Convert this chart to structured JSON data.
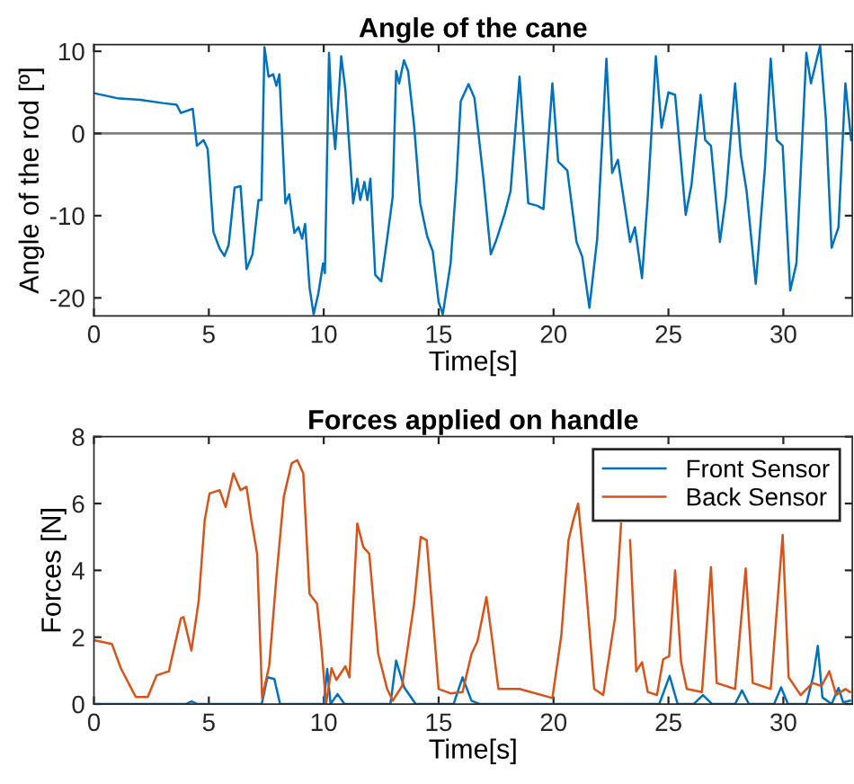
{
  "chart_data": [
    {
      "type": "line",
      "title": "Angle of the cane",
      "xlabel": "Time[s]",
      "ylabel": "Angle of the rod [º]",
      "xlim": [
        0,
        33
      ],
      "ylim": [
        -22.2,
        10.8
      ],
      "xticks": [
        0,
        5,
        10,
        15,
        20,
        25,
        30
      ],
      "yticks": [
        -20,
        -10,
        0,
        10
      ],
      "grid": false,
      "legend": false,
      "ref_lines": [
        {
          "axis": "y",
          "value": 0,
          "color": "#808080"
        }
      ],
      "series": [
        {
          "color": "#0072bd",
          "x": [
            0,
            1,
            2,
            3,
            3.6,
            3.78,
            4.3,
            4.48,
            4.77,
            4.95,
            5.2,
            5.47,
            5.68,
            5.86,
            6.12,
            6.38,
            6.64,
            6.9,
            7.16,
            7.29,
            7.42,
            7.6,
            7.8,
            7.94,
            8.07,
            8.33,
            8.5,
            8.72,
            8.9,
            9.06,
            9.19,
            9.38,
            9.56,
            9.77,
            9.97,
            10.05,
            10.23,
            10.34,
            10.5,
            10.76,
            10.94,
            11.28,
            11.46,
            11.59,
            11.77,
            11.9,
            12.03,
            12.24,
            12.5,
            12.76,
            13.0,
            13.15,
            13.28,
            13.49,
            13.67,
            13.93,
            14.2,
            14.5,
            14.74,
            15.0,
            15.18,
            15.52,
            15.78,
            15.96,
            16.3,
            16.56,
            16.95,
            17.27,
            17.53,
            17.86,
            18.13,
            18.52,
            18.9,
            19.3,
            19.56,
            19.95,
            20.2,
            20.6,
            21.0,
            21.25,
            21.56,
            21.9,
            22.3,
            22.55,
            22.8,
            23.33,
            23.54,
            23.85,
            24.1,
            24.45,
            24.7,
            25.0,
            25.29,
            25.75,
            26.0,
            26.4,
            26.6,
            26.85,
            27.24,
            27.5,
            27.9,
            28.15,
            28.4,
            28.8,
            29.2,
            29.45,
            29.71,
            29.97,
            30.3,
            30.57,
            31.0,
            31.2,
            31.6,
            31.85,
            32.1,
            32.4,
            32.7,
            32.95
          ],
          "values": [
            4.9,
            4.3,
            4.1,
            3.7,
            3.5,
            2.5,
            3.0,
            -1.5,
            -0.8,
            -1.9,
            -12,
            -14,
            -14.9,
            -13.6,
            -6.6,
            -6.4,
            -16.5,
            -14.7,
            -8.1,
            -8.1,
            10.5,
            6.9,
            7.2,
            5.8,
            7.2,
            -8.5,
            -7.4,
            -12.1,
            -11.4,
            -12.8,
            -11,
            -18.7,
            -22,
            -19.4,
            -15.8,
            -17,
            9.8,
            3.2,
            -1.9,
            9.4,
            5.4,
            -8.5,
            -5.5,
            -8.1,
            -5.9,
            -8.1,
            -5.5,
            -17.2,
            -18,
            -12.8,
            -7.7,
            7.6,
            6.1,
            8.9,
            7.6,
            1,
            -8.5,
            -12.5,
            -14.3,
            -20.5,
            -22,
            -15.8,
            -5.5,
            3.9,
            6.0,
            4.3,
            -5.5,
            -14.7,
            -12.8,
            -9.9,
            -7,
            6.9,
            -8.5,
            -8.8,
            -9.2,
            6.1,
            -3.4,
            -4.5,
            -13.2,
            -15,
            -21.2,
            -12.8,
            9.1,
            -4.8,
            -3.2,
            -13.2,
            -11.4,
            -17.6,
            -7.7,
            9.4,
            0.7,
            5.0,
            4.7,
            -9.9,
            -6.3,
            4.7,
            -0.8,
            -1.5,
            -13.2,
            -7.7,
            6.1,
            -2.6,
            -7,
            -18.3,
            -4.1,
            9.1,
            -0.8,
            -1.5,
            -19.1,
            -15.8,
            9.8,
            6.1,
            10.7,
            1.8,
            -13.9,
            -11.4,
            6.1,
            -0.8
          ]
        }
      ]
    },
    {
      "type": "line",
      "title": "Forces applied on handle",
      "xlabel": "Time[s]",
      "ylabel": "Forces [N]",
      "xlim": [
        0,
        33
      ],
      "ylim": [
        0,
        8
      ],
      "xticks": [
        0,
        5,
        10,
        15,
        20,
        25,
        30
      ],
      "yticks": [
        0,
        2,
        4,
        6,
        8
      ],
      "grid": false,
      "legend": "top right",
      "series": [
        {
          "name": "Front Sensor",
          "color": "#0072bd",
          "x": [
            0,
            4.0,
            4.25,
            4.5,
            7.3,
            7.55,
            7.85,
            8.1,
            10.0,
            10.15,
            10.3,
            10.6,
            10.9,
            12.9,
            13.15,
            13.5,
            14.0,
            15.65,
            16.04,
            16.43,
            16.8,
            24.6,
            25.05,
            25.4,
            26.1,
            26.5,
            26.9,
            27.9,
            28.2,
            28.5,
            29.6,
            29.9,
            30.2,
            31.0,
            31.3,
            31.5,
            31.7,
            32.1,
            32.4,
            32.6,
            32.9
          ],
          "values": [
            0,
            0,
            0.08,
            0,
            0,
            0.8,
            0.75,
            0,
            0,
            1.05,
            0,
            0.3,
            0,
            0,
            1.3,
            0.5,
            0,
            0,
            0.8,
            0.1,
            0,
            0,
            0.84,
            0,
            0,
            0.27,
            0,
            0,
            0.41,
            0,
            0,
            0.5,
            0,
            0,
            0.84,
            1.74,
            0.2,
            0,
            0.48,
            0.05,
            0.1
          ]
        },
        {
          "name": "Back Sensor",
          "color": "#d95319",
          "x": [
            0,
            0.78,
            1.17,
            1.82,
            2.34,
            2.73,
            3.26,
            3.78,
            3.9,
            4.24,
            4.56,
            4.82,
            5.03,
            5.47,
            5.73,
            6.07,
            6.38,
            6.64,
            6.85,
            7.1,
            7.32,
            7.63,
            7.94,
            8.26,
            8.6,
            8.85,
            9.11,
            9.38,
            9.71,
            9.9,
            10.1,
            10.34,
            10.55,
            10.94,
            11.12,
            11.46,
            11.72,
            11.98,
            12.37,
            12.76,
            13.0,
            13.41,
            13.93,
            14.22,
            14.48,
            15.0,
            15.52,
            16.04,
            16.43,
            16.69,
            17.08,
            17.34,
            17.6,
            18.52,
            19.95,
            20.34,
            20.65,
            20.86,
            21.07,
            21.38,
            21.77,
            22.16,
            22.68,
            22.94,
            23.15,
            23.33,
            23.6,
            23.85,
            24.1,
            24.5,
            24.77,
            25.03,
            25.29,
            25.55,
            25.8,
            26.46,
            26.85,
            27.1,
            27.9,
            28.36,
            28.67,
            29.45,
            29.97,
            30.23,
            30.75,
            31.27,
            31.66,
            32.0,
            32.3,
            32.7,
            32.9
          ],
          "values": [
            1.91,
            1.8,
            1.07,
            0.21,
            0.21,
            0.86,
            0.98,
            2.56,
            2.6,
            1.6,
            3.1,
            5.5,
            6.3,
            6.4,
            5.9,
            6.9,
            6.4,
            6.5,
            5.5,
            4.5,
            0.18,
            1.16,
            3.8,
            6.2,
            7.2,
            7.3,
            6.9,
            3.3,
            3.0,
            1.7,
            0,
            1.07,
            0.72,
            1.13,
            0.8,
            5.4,
            4.7,
            4.5,
            1.5,
            0.45,
            0.1,
            0.54,
            3.0,
            5.0,
            4.9,
            0.45,
            0.32,
            0.36,
            1.5,
            1.88,
            3.2,
            1.88,
            0.45,
            0.45,
            0.18,
            2.06,
            4.9,
            5.5,
            6.0,
            3.8,
            0.45,
            0.27,
            2.6,
            5.4,
            null,
            4.9,
            0.98,
            1.25,
            0.36,
            0.27,
            1.34,
            1.43,
            4.0,
            1.25,
            0.45,
            0.36,
            4.1,
            0.63,
            0.45,
            4.06,
            0.63,
            0.45,
            5.06,
            0.8,
            0.27,
            0.63,
            0.54,
            0.98,
            0.27,
            0.45,
            0.36
          ]
        }
      ]
    }
  ]
}
